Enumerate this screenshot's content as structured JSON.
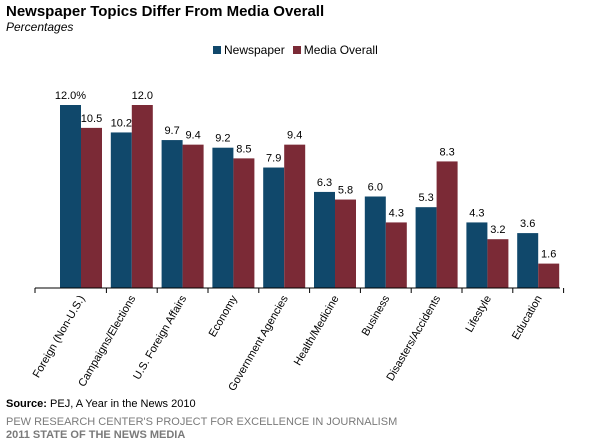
{
  "chart_data": {
    "type": "bar",
    "title": "Newspaper Topics Differ From Media Overall",
    "subtitle": "Percentages",
    "categories": [
      "Foreign (Non-U.S.)",
      "Campaigns/Elections",
      "U.S. Foreign Affairs",
      "Economy",
      "Government Agencies",
      "Health/Medicine",
      "Business",
      "Disasters/Accidents",
      "Lifestyle",
      "Education"
    ],
    "series": [
      {
        "name": "Newspaper",
        "color": "#10486b",
        "values": [
          12.0,
          10.2,
          9.7,
          9.2,
          7.9,
          6.3,
          6.0,
          5.3,
          4.3,
          3.6
        ],
        "labels": [
          "12.0%",
          "10.2",
          "9.7",
          "9.2",
          "7.9",
          "6.3",
          "6.0",
          "5.3",
          "4.3",
          "3.6"
        ]
      },
      {
        "name": "Media Overall",
        "color": "#7b2a36",
        "values": [
          10.5,
          12.0,
          9.4,
          8.5,
          9.4,
          5.8,
          4.3,
          8.3,
          3.2,
          1.6
        ],
        "labels": [
          "10.5",
          "12.0",
          "9.4",
          "8.5",
          "9.4",
          "5.8",
          "4.3",
          "8.3",
          "3.2",
          "1.6"
        ]
      }
    ],
    "ylim": [
      0,
      12.0
    ],
    "grid": false,
    "legend_position": "top-center"
  },
  "source": {
    "label": "Source:",
    "text": " PEJ, A Year in the News 2010"
  },
  "credit": {
    "line1": "PEW RESEARCH CENTER'S PROJECT FOR EXCELLENCE IN JOURNALISM",
    "line2": "2011 STATE OF THE NEWS MEDIA"
  }
}
